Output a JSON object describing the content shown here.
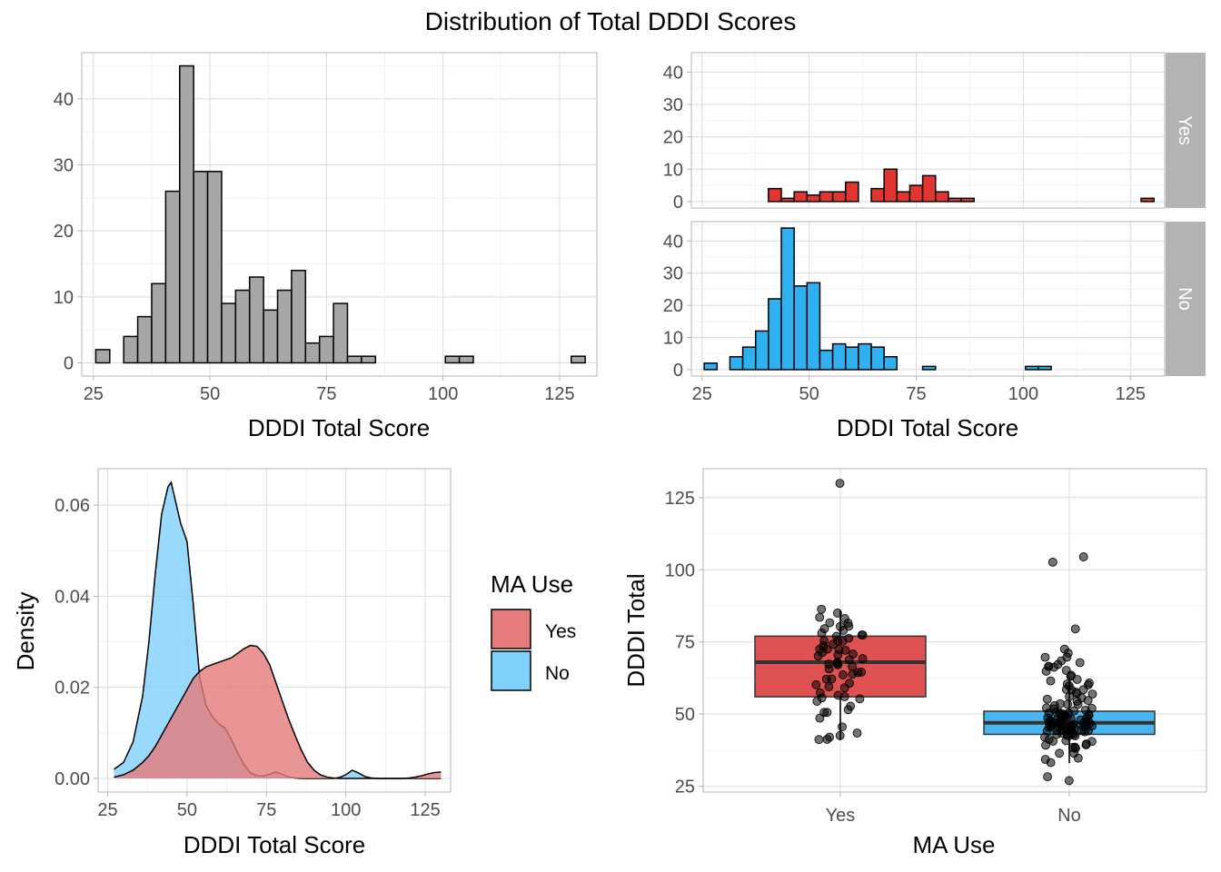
{
  "title": "Distribution of Total DDDI Scores",
  "colors": {
    "overall": "#a6a6a6",
    "yes": "#e03530",
    "no": "#2fb0f0",
    "yes_fill": "#e57b7b",
    "no_fill": "#7fd0fa",
    "box_yes": "#e05252",
    "box_no": "#4ab6f0"
  },
  "chart_data": [
    {
      "type": "bar",
      "subtype": "histogram",
      "xlabel": "DDDI Total Score",
      "ylabel": "",
      "xlim": [
        22.5,
        133
      ],
      "ylim": [
        -2,
        47
      ],
      "xticks": [
        25,
        50,
        75,
        100,
        125
      ],
      "yticks": [
        0,
        10,
        20,
        30,
        40
      ],
      "bin_width": 3,
      "bin_centers": [
        27,
        30,
        33,
        36,
        39,
        42,
        45,
        48,
        51,
        54,
        57,
        60,
        63,
        66,
        69,
        72,
        75,
        78,
        81,
        84,
        87,
        90,
        93,
        96,
        99,
        102,
        105,
        108,
        111,
        114,
        117,
        120,
        123,
        126,
        129
      ],
      "values": [
        2,
        0,
        4,
        7,
        12,
        26,
        45,
        29,
        29,
        9,
        11,
        13,
        8,
        11,
        14,
        3,
        4,
        9,
        1,
        1,
        0,
        0,
        0,
        0,
        0,
        1,
        1,
        0,
        0,
        0,
        0,
        0,
        0,
        0,
        1
      ]
    },
    {
      "type": "bar",
      "subtype": "faceted histogram",
      "xlabel": "DDDI Total Score",
      "ylabel": "",
      "xlim": [
        22.5,
        133
      ],
      "ylim": [
        -2,
        46
      ],
      "xticks": [
        25,
        50,
        75,
        100,
        125
      ],
      "yticks": [
        0,
        10,
        20,
        30,
        40
      ],
      "bin_width": 3,
      "bin_centers": [
        27,
        30,
        33,
        36,
        39,
        42,
        45,
        48,
        51,
        54,
        57,
        60,
        63,
        66,
        69,
        72,
        75,
        78,
        81,
        84,
        87,
        90,
        93,
        96,
        99,
        102,
        105,
        108,
        111,
        114,
        117,
        120,
        123,
        126,
        129
      ],
      "facets": [
        {
          "label": "Yes",
          "values": [
            0,
            0,
            0,
            0,
            0,
            4,
            1,
            3,
            2,
            3,
            3,
            6,
            0,
            4,
            10,
            3,
            5,
            8,
            3,
            1,
            1,
            0,
            0,
            0,
            0,
            0,
            0,
            0,
            0,
            0,
            0,
            0,
            0,
            0,
            1
          ]
        },
        {
          "label": "No",
          "values": [
            2,
            0,
            4,
            7,
            12,
            22,
            44,
            26,
            27,
            6,
            8,
            7,
            8,
            7,
            4,
            0,
            0,
            1,
            0,
            0,
            0,
            0,
            0,
            0,
            0,
            1,
            1,
            0,
            0,
            0,
            0,
            0,
            0,
            0,
            0
          ]
        }
      ]
    },
    {
      "type": "area",
      "subtype": "density",
      "xlabel": "DDDI Total Score",
      "ylabel": "Density",
      "xlim": [
        22,
        133
      ],
      "ylim": [
        -0.003,
        0.068
      ],
      "xticks": [
        25,
        50,
        75,
        100,
        125
      ],
      "yticks": [
        0.0,
        0.02,
        0.04,
        0.06
      ],
      "ytick_labels": [
        "0.00",
        "0.02",
        "0.04",
        "0.06"
      ],
      "legend": {
        "title": "MA Use",
        "entries": [
          "Yes",
          "No"
        ],
        "position": "right"
      },
      "series": [
        {
          "name": "No",
          "x": [
            27,
            30,
            33,
            36,
            38,
            40,
            42,
            44,
            45,
            46,
            48,
            50,
            52,
            54,
            56,
            58,
            60,
            62,
            64,
            66,
            68,
            70,
            72,
            74,
            76,
            78,
            80,
            82,
            84,
            86,
            88,
            90,
            92,
            94,
            96,
            98,
            100,
            102,
            104,
            106,
            108,
            110,
            112,
            114,
            116,
            118,
            120,
            122,
            124,
            126,
            128,
            130
          ],
          "y": [
            0.002,
            0.0035,
            0.008,
            0.018,
            0.03,
            0.045,
            0.058,
            0.064,
            0.065,
            0.062,
            0.056,
            0.052,
            0.038,
            0.022,
            0.016,
            0.0135,
            0.012,
            0.011,
            0.0085,
            0.0055,
            0.003,
            0.0012,
            0.0006,
            0.0005,
            0.0009,
            0.0014,
            0.0009,
            0.0003,
            0.0001,
            0,
            0,
            0,
            0,
            0,
            0,
            0.0002,
            0.0008,
            0.0018,
            0.0012,
            0.0004,
            0.0001,
            0,
            0,
            0,
            0,
            0,
            0,
            0,
            0,
            0,
            0,
            0
          ]
        },
        {
          "name": "Yes",
          "x": [
            27,
            30,
            33,
            36,
            38,
            40,
            42,
            44,
            46,
            48,
            50,
            52,
            54,
            56,
            58,
            60,
            62,
            64,
            66,
            68,
            70,
            72,
            74,
            76,
            78,
            80,
            82,
            84,
            86,
            88,
            90,
            92,
            94,
            96,
            98,
            100,
            102,
            104,
            106,
            108,
            110,
            112,
            114,
            116,
            118,
            120,
            122,
            124,
            126,
            128,
            130
          ],
          "y": [
            0.0003,
            0.0008,
            0.0018,
            0.0035,
            0.005,
            0.007,
            0.0095,
            0.012,
            0.0145,
            0.017,
            0.0195,
            0.022,
            0.0235,
            0.0245,
            0.025,
            0.0255,
            0.026,
            0.0265,
            0.0275,
            0.0285,
            0.0292,
            0.029,
            0.0275,
            0.025,
            0.021,
            0.017,
            0.013,
            0.0095,
            0.0062,
            0.0035,
            0.0018,
            0.0008,
            0.0003,
            0.0001,
            0,
            0,
            0,
            0,
            0,
            0,
            0,
            0,
            0,
            0,
            0,
            0.0001,
            0.0003,
            0.0006,
            0.001,
            0.0013,
            0.0014
          ]
        }
      ]
    },
    {
      "type": "scatter",
      "subtype": "boxplot with jittered points",
      "xlabel": "MA Use",
      "ylabel": "DDDI Total",
      "ylim": [
        23,
        135
      ],
      "yticks": [
        25,
        50,
        75,
        100,
        125
      ],
      "categories": [
        "Yes",
        "No"
      ],
      "boxes": [
        {
          "name": "Yes",
          "min": 41,
          "q1": 56,
          "median": 68,
          "q3": 77,
          "max": 86
        },
        {
          "name": "No",
          "min": 33,
          "q1": 43,
          "median": 47,
          "q3": 51,
          "max": 63
        }
      ],
      "points": [
        {
          "name": "Yes",
          "values": [
            130,
            86,
            85,
            84,
            83,
            82,
            81,
            80,
            80,
            79,
            79,
            78,
            78,
            77,
            77,
            76,
            76,
            75,
            75,
            74,
            74,
            73,
            73,
            72,
            72,
            71,
            71,
            70,
            70,
            69,
            69,
            68,
            68,
            67,
            67,
            66,
            66,
            65,
            65,
            64,
            63,
            62,
            62,
            61,
            60,
            60,
            59,
            58,
            57,
            56,
            56,
            55,
            54,
            53,
            52,
            51,
            50,
            48,
            46,
            43,
            42,
            42,
            41,
            41
          ]
        },
        {
          "name": "No",
          "values": [
            104,
            102,
            79,
            72,
            71,
            70,
            70,
            69,
            68,
            67,
            67,
            66,
            66,
            65,
            65,
            64,
            63,
            62,
            62,
            61,
            61,
            60,
            60,
            59,
            59,
            58,
            58,
            57,
            57,
            56,
            56,
            55,
            55,
            54,
            54,
            53,
            53,
            53,
            52,
            52,
            52,
            51,
            51,
            51,
            51,
            50,
            50,
            50,
            50,
            50,
            49,
            49,
            49,
            49,
            49,
            49,
            48,
            48,
            48,
            48,
            48,
            48,
            48,
            47,
            47,
            47,
            47,
            47,
            47,
            47,
            47,
            46,
            46,
            46,
            46,
            46,
            46,
            46,
            46,
            45,
            45,
            45,
            45,
            45,
            45,
            45,
            44,
            44,
            44,
            44,
            44,
            44,
            43,
            43,
            43,
            43,
            43,
            42,
            42,
            42,
            42,
            41,
            41,
            41,
            40,
            40,
            40,
            39,
            39,
            38,
            38,
            37,
            36,
            35,
            34,
            33,
            28,
            27
          ]
        }
      ]
    }
  ]
}
